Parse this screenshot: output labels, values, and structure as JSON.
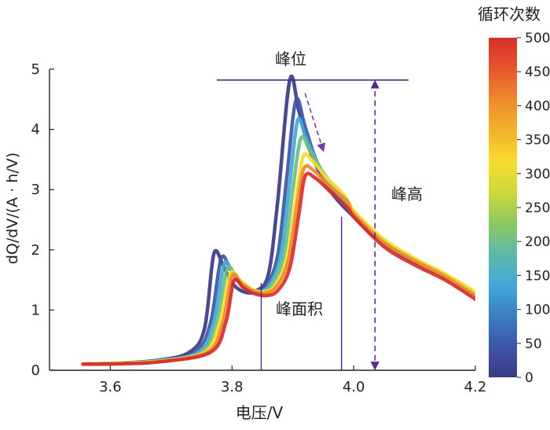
{
  "chart_data": {
    "type": "line",
    "xlabel": "电压/V",
    "ylabel": "dQ/dV/(A · h/V)",
    "xlim": [
      3.5,
      4.2
    ],
    "ylim": [
      0,
      5
    ],
    "x_ticks": [
      "3.6",
      "3.8",
      "4.0",
      "4.2"
    ],
    "y_ticks": [
      "0",
      "1",
      "2",
      "3",
      "4",
      "5"
    ],
    "colorbar": {
      "title": "循环次数",
      "range": [
        0,
        500
      ],
      "ticks": [
        "0",
        "50",
        "100",
        "150",
        "200",
        "250",
        "300",
        "350",
        "400",
        "450",
        "500"
      ],
      "colormap": [
        "#3b3a86",
        "#3d56a6",
        "#3a7fc0",
        "#42a9d8",
        "#5fb9a8",
        "#8cc860",
        "#cfd93c",
        "#f6dc2e",
        "#f4b12c",
        "#ee8a2e",
        "#e7552d",
        "#d62f2c"
      ]
    },
    "annotations": {
      "peak_position": "峰位",
      "peak_height": "峰高",
      "peak_area": "峰面积",
      "peak_position_voltage_range": [
        3.775,
        4.09
      ],
      "peak_position_level": 4.82,
      "peak_height_x": 4.035,
      "peak_area_bounds_x": [
        3.848,
        3.98
      ],
      "trend_arrow": {
        "from": [
          3.92,
          4.6
        ],
        "to": [
          3.95,
          3.65
        ]
      }
    },
    "series": [
      {
        "cycle": 0,
        "color": "#3b3a86",
        "points": [
          [
            3.555,
            0.1
          ],
          [
            3.62,
            0.12
          ],
          [
            3.68,
            0.17
          ],
          [
            3.73,
            0.3
          ],
          [
            3.755,
            0.7
          ],
          [
            3.77,
            1.93
          ],
          [
            3.785,
            1.75
          ],
          [
            3.8,
            1.45
          ],
          [
            3.82,
            1.3
          ],
          [
            3.84,
            1.32
          ],
          [
            3.86,
            1.6
          ],
          [
            3.875,
            2.8
          ],
          [
            3.895,
            4.82
          ],
          [
            3.91,
            4.3
          ],
          [
            3.93,
            3.6
          ],
          [
            3.96,
            3.0
          ],
          [
            4.0,
            2.55
          ],
          [
            4.05,
            2.1
          ],
          [
            4.1,
            1.8
          ],
          [
            4.15,
            1.55
          ],
          [
            4.2,
            1.25
          ]
        ]
      },
      {
        "cycle": 50,
        "color": "#3d56a6",
        "points": [
          [
            3.555,
            0.1
          ],
          [
            3.62,
            0.12
          ],
          [
            3.68,
            0.16
          ],
          [
            3.74,
            0.3
          ],
          [
            3.765,
            0.8
          ],
          [
            3.782,
            1.85
          ],
          [
            3.797,
            1.68
          ],
          [
            3.815,
            1.42
          ],
          [
            3.835,
            1.31
          ],
          [
            3.855,
            1.38
          ],
          [
            3.875,
            1.9
          ],
          [
            3.89,
            3.2
          ],
          [
            3.905,
            4.48
          ],
          [
            3.92,
            4.05
          ],
          [
            3.94,
            3.45
          ],
          [
            3.97,
            2.95
          ],
          [
            4.0,
            2.55
          ],
          [
            4.05,
            2.1
          ],
          [
            4.1,
            1.8
          ],
          [
            4.15,
            1.55
          ],
          [
            4.2,
            1.25
          ]
        ]
      },
      {
        "cycle": 100,
        "color": "#42a9d8",
        "points": [
          [
            3.555,
            0.1
          ],
          [
            3.62,
            0.12
          ],
          [
            3.68,
            0.16
          ],
          [
            3.745,
            0.3
          ],
          [
            3.77,
            0.8
          ],
          [
            3.787,
            1.76
          ],
          [
            3.802,
            1.6
          ],
          [
            3.82,
            1.4
          ],
          [
            3.84,
            1.31
          ],
          [
            3.86,
            1.4
          ],
          [
            3.88,
            1.9
          ],
          [
            3.895,
            3.1
          ],
          [
            3.908,
            4.15
          ],
          [
            3.922,
            3.85
          ],
          [
            3.945,
            3.35
          ],
          [
            3.975,
            2.92
          ],
          [
            4.0,
            2.6
          ],
          [
            4.05,
            2.12
          ],
          [
            4.1,
            1.82
          ],
          [
            4.15,
            1.56
          ],
          [
            4.2,
            1.26
          ]
        ]
      },
      {
        "cycle": 200,
        "color": "#6cbf80",
        "points": [
          [
            3.555,
            0.1
          ],
          [
            3.62,
            0.12
          ],
          [
            3.68,
            0.15
          ],
          [
            3.75,
            0.3
          ],
          [
            3.775,
            0.8
          ],
          [
            3.792,
            1.68
          ],
          [
            3.807,
            1.55
          ],
          [
            3.825,
            1.38
          ],
          [
            3.845,
            1.3
          ],
          [
            3.865,
            1.42
          ],
          [
            3.885,
            1.9
          ],
          [
            3.9,
            3.0
          ],
          [
            3.913,
            3.85
          ],
          [
            3.928,
            3.65
          ],
          [
            3.95,
            3.28
          ],
          [
            3.98,
            2.9
          ],
          [
            4.0,
            2.62
          ],
          [
            4.05,
            2.14
          ],
          [
            4.1,
            1.84
          ],
          [
            4.15,
            1.58
          ],
          [
            4.2,
            1.28
          ]
        ]
      },
      {
        "cycle": 300,
        "color": "#f6dc2e",
        "points": [
          [
            3.555,
            0.1
          ],
          [
            3.62,
            0.12
          ],
          [
            3.68,
            0.15
          ],
          [
            3.755,
            0.3
          ],
          [
            3.78,
            0.8
          ],
          [
            3.797,
            1.6
          ],
          [
            3.812,
            1.5
          ],
          [
            3.83,
            1.36
          ],
          [
            3.85,
            1.3
          ],
          [
            3.87,
            1.4
          ],
          [
            3.89,
            1.85
          ],
          [
            3.905,
            2.85
          ],
          [
            3.917,
            3.55
          ],
          [
            3.932,
            3.48
          ],
          [
            3.955,
            3.2
          ],
          [
            3.985,
            2.9
          ],
          [
            4.0,
            2.65
          ],
          [
            4.05,
            2.17
          ],
          [
            4.1,
            1.86
          ],
          [
            4.15,
            1.6
          ],
          [
            4.2,
            1.3
          ]
        ]
      },
      {
        "cycle": 400,
        "color": "#ee8a2e",
        "points": [
          [
            3.555,
            0.1
          ],
          [
            3.62,
            0.11
          ],
          [
            3.68,
            0.14
          ],
          [
            3.76,
            0.3
          ],
          [
            3.785,
            0.8
          ],
          [
            3.8,
            1.56
          ],
          [
            3.815,
            1.45
          ],
          [
            3.832,
            1.33
          ],
          [
            3.852,
            1.28
          ],
          [
            3.872,
            1.38
          ],
          [
            3.892,
            1.8
          ],
          [
            3.907,
            2.75
          ],
          [
            3.918,
            3.35
          ],
          [
            3.934,
            3.32
          ],
          [
            3.958,
            3.08
          ],
          [
            3.99,
            2.8
          ],
          [
            4.0,
            2.6
          ],
          [
            4.05,
            2.12
          ],
          [
            4.1,
            1.82
          ],
          [
            4.15,
            1.56
          ],
          [
            4.2,
            1.24
          ]
        ]
      },
      {
        "cycle": 500,
        "color": "#d62f2c",
        "points": [
          [
            3.555,
            0.1
          ],
          [
            3.62,
            0.11
          ],
          [
            3.68,
            0.14
          ],
          [
            3.765,
            0.3
          ],
          [
            3.79,
            0.8
          ],
          [
            3.803,
            1.48
          ],
          [
            3.818,
            1.38
          ],
          [
            3.835,
            1.28
          ],
          [
            3.855,
            1.24
          ],
          [
            3.875,
            1.32
          ],
          [
            3.895,
            1.7
          ],
          [
            3.91,
            2.6
          ],
          [
            3.92,
            3.22
          ],
          [
            3.936,
            3.2
          ],
          [
            3.96,
            2.98
          ],
          [
            3.99,
            2.7
          ],
          [
            4.0,
            2.55
          ],
          [
            4.05,
            2.05
          ],
          [
            4.1,
            1.75
          ],
          [
            4.15,
            1.5
          ],
          [
            4.2,
            1.18
          ]
        ]
      }
    ]
  }
}
